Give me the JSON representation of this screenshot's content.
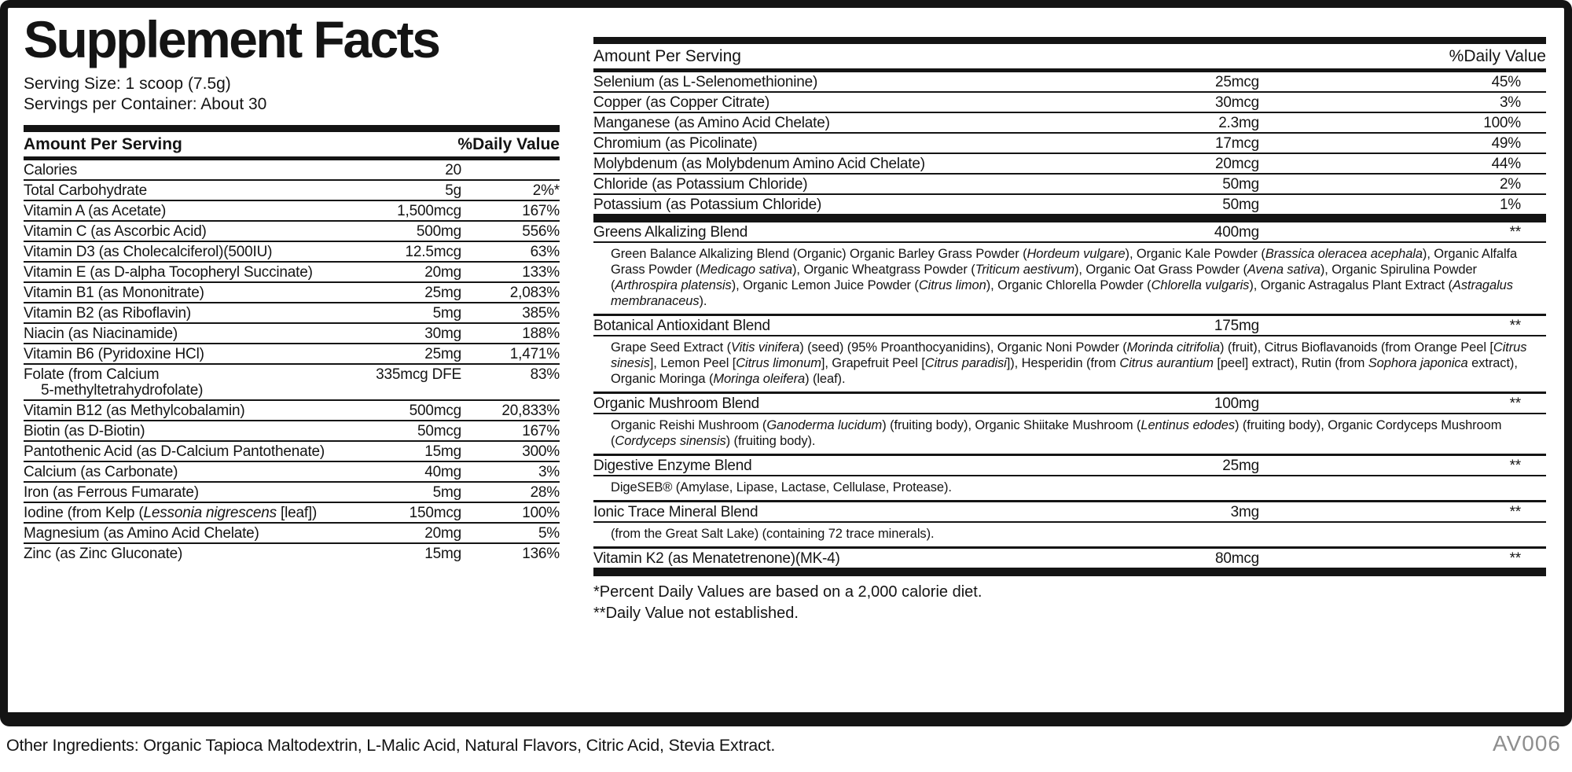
{
  "colors": {
    "text": "#141414",
    "bars": "#141414",
    "background": "#ffffff",
    "code_gray": "#8e8e8e"
  },
  "label": {
    "title": "Supplement Facts",
    "serving_size": "Serving Size: 1 scoop (7.5g)",
    "servings_per_container": "Servings per Container: About 30",
    "amount_header": "Amount Per Serving",
    "dv_header": "%Daily Value",
    "footnotes": [
      "*Percent Daily Values are based on a 2,000 calorie diet.",
      "**Daily Value not established."
    ],
    "other_ingredients": "Other Ingredients: Organic Tapioca Maltodextrin, L-Malic Acid, Natural Flavors, Citric Acid, Stevia Extract.",
    "code": "AV006"
  },
  "left_table": {
    "rows": [
      {
        "name": "Calories",
        "amount": "20",
        "dv": ""
      },
      {
        "name": "Total Carbohydrate",
        "amount": "5g",
        "dv": "2%*"
      },
      {
        "name": "Vitamin A (as Acetate)",
        "amount": "1,500mcg",
        "dv": "167%"
      },
      {
        "name": "Vitamin C (as Ascorbic Acid)",
        "amount": "500mg",
        "dv": "556%"
      },
      {
        "name": "Vitamin D3 (as Cholecalciferol)(500IU)",
        "amount": "12.5mcg",
        "dv": "63%"
      },
      {
        "name": "Vitamin E (as D-alpha Tocopheryl Succinate)",
        "amount": "20mg",
        "dv": "133%"
      },
      {
        "name": "Vitamin B1 (as Mononitrate)",
        "amount": "25mg",
        "dv": "2,083%"
      },
      {
        "name": "Vitamin B2 (as Riboflavin)",
        "amount": "5mg",
        "dv": "385%"
      },
      {
        "name": "Niacin (as Niacinamide)",
        "amount": "30mg",
        "dv": "188%"
      },
      {
        "name": "Vitamin B6 (Pyridoxine HCl)",
        "amount": "25mg",
        "dv": "1,471%"
      },
      {
        "name": "Folate (from Calcium",
        "name2": "5-methyltetrahydrofolate)",
        "amount": "335mcg DFE",
        "dv": "83%"
      },
      {
        "name": "Vitamin B12 (as Methylcobalamin)",
        "amount": "500mcg",
        "dv": "20,833%"
      },
      {
        "name": "Biotin (as D-Biotin)",
        "amount": "50mcg",
        "dv": "167%"
      },
      {
        "name": "Pantothenic Acid (as D-Calcium Pantothenate)",
        "amount": "15mg",
        "dv": "300%"
      },
      {
        "name": "Calcium (as Carbonate)",
        "amount": "40mg",
        "dv": "3%"
      },
      {
        "name": "Iron (as Ferrous Fumarate)",
        "amount": "5mg",
        "dv": "28%"
      },
      {
        "name": "Iodine (from Kelp (*Lessonia nigrescens* [leaf])",
        "amount": "150mcg",
        "dv": "100%"
      },
      {
        "name": "Magnesium (as Amino Acid Chelate)",
        "amount": "20mg",
        "dv": "5%"
      },
      {
        "name": "Zinc (as Zinc Gluconate)",
        "amount": "15mg",
        "dv": "136%"
      }
    ]
  },
  "right_table": {
    "mineral_rows": [
      {
        "name": "Selenium (as L-Selenomethionine)",
        "amount": "25mcg",
        "dv": "45%"
      },
      {
        "name": "Copper (as Copper Citrate)",
        "amount": "30mcg",
        "dv": "3%"
      },
      {
        "name": "Manganese (as Amino Acid Chelate)",
        "amount": "2.3mg",
        "dv": "100%"
      },
      {
        "name": "Chromium (as Picolinate)",
        "amount": "17mcg",
        "dv": "49%"
      },
      {
        "name": "Molybdenum (as Molybdenum Amino Acid Chelate)",
        "amount": "20mcg",
        "dv": "44%"
      },
      {
        "name": "Chloride (as Potassium Chloride)",
        "amount": "50mg",
        "dv": "2%"
      },
      {
        "name": "Potassium (as Potassium Chloride)",
        "amount": "50mg",
        "dv": "1%"
      }
    ],
    "blends": [
      {
        "name": "Greens Alkalizing Blend",
        "amount": "400mg",
        "dv": "**",
        "desc": "Green Balance Alkalizing Blend (Organic) Organic Barley Grass Powder (*Hordeum vulgare*), Organic Kale Powder (*Brassica oleracea acephala*), Organic Alfalfa Grass Powder (*Medicago sativa*), Organic Wheatgrass Powder (*Triticum aestivum*), Organic Oat Grass Powder (*Avena sativa*), Organic Spirulina Powder (*Arthrospira platensis*), Organic Lemon Juice Powder (*Citrus limon*), Organic Chlorella Powder (*Chlorella vulgaris*), Organic Astragalus Plant Extract (*Astragalus membranaceus*)."
      },
      {
        "name": "Botanical Antioxidant Blend",
        "amount": "175mg",
        "dv": "**",
        "desc": "Grape Seed Extract (*Vitis vinifera*) (seed) (95% Proanthocyanidins), Organic Noni Powder (*Morinda citrifolia*) (fruit), Citrus Bioflavanoids (from Orange Peel [*Citrus sinesis*], Lemon Peel [*Citrus limonum*], Grapefruit Peel [*Citrus paradisi*]), Hesperidin (from *Citrus aurantium* [peel] extract), Rutin (from *Sophora japonica* extract), Organic Moringa (*Moringa oleifera*) (leaf)."
      },
      {
        "name": "Organic Mushroom Blend",
        "amount": "100mg",
        "dv": "**",
        "desc": "Organic Reishi Mushroom (*Ganoderma lucidum*) (fruiting body), Organic Shiitake Mushroom (*Lentinus edodes*) (fruiting body), Organic Cordyceps Mushroom (*Cordyceps sinensis*) (fruiting body)."
      },
      {
        "name": "Digestive Enzyme Blend",
        "amount": "25mg",
        "dv": "**",
        "desc": "DigeSEB® (Amylase, Lipase, Lactase, Cellulase, Protease)."
      },
      {
        "name": "Ionic Trace Mineral Blend",
        "amount": "3mg",
        "dv": "**",
        "desc": "(from the Great Salt Lake) (containing 72 trace minerals)."
      },
      {
        "name": "Vitamin K2 (as Menatetrenone)(MK-4)",
        "amount": "80mcg",
        "dv": "**",
        "desc": ""
      }
    ]
  }
}
